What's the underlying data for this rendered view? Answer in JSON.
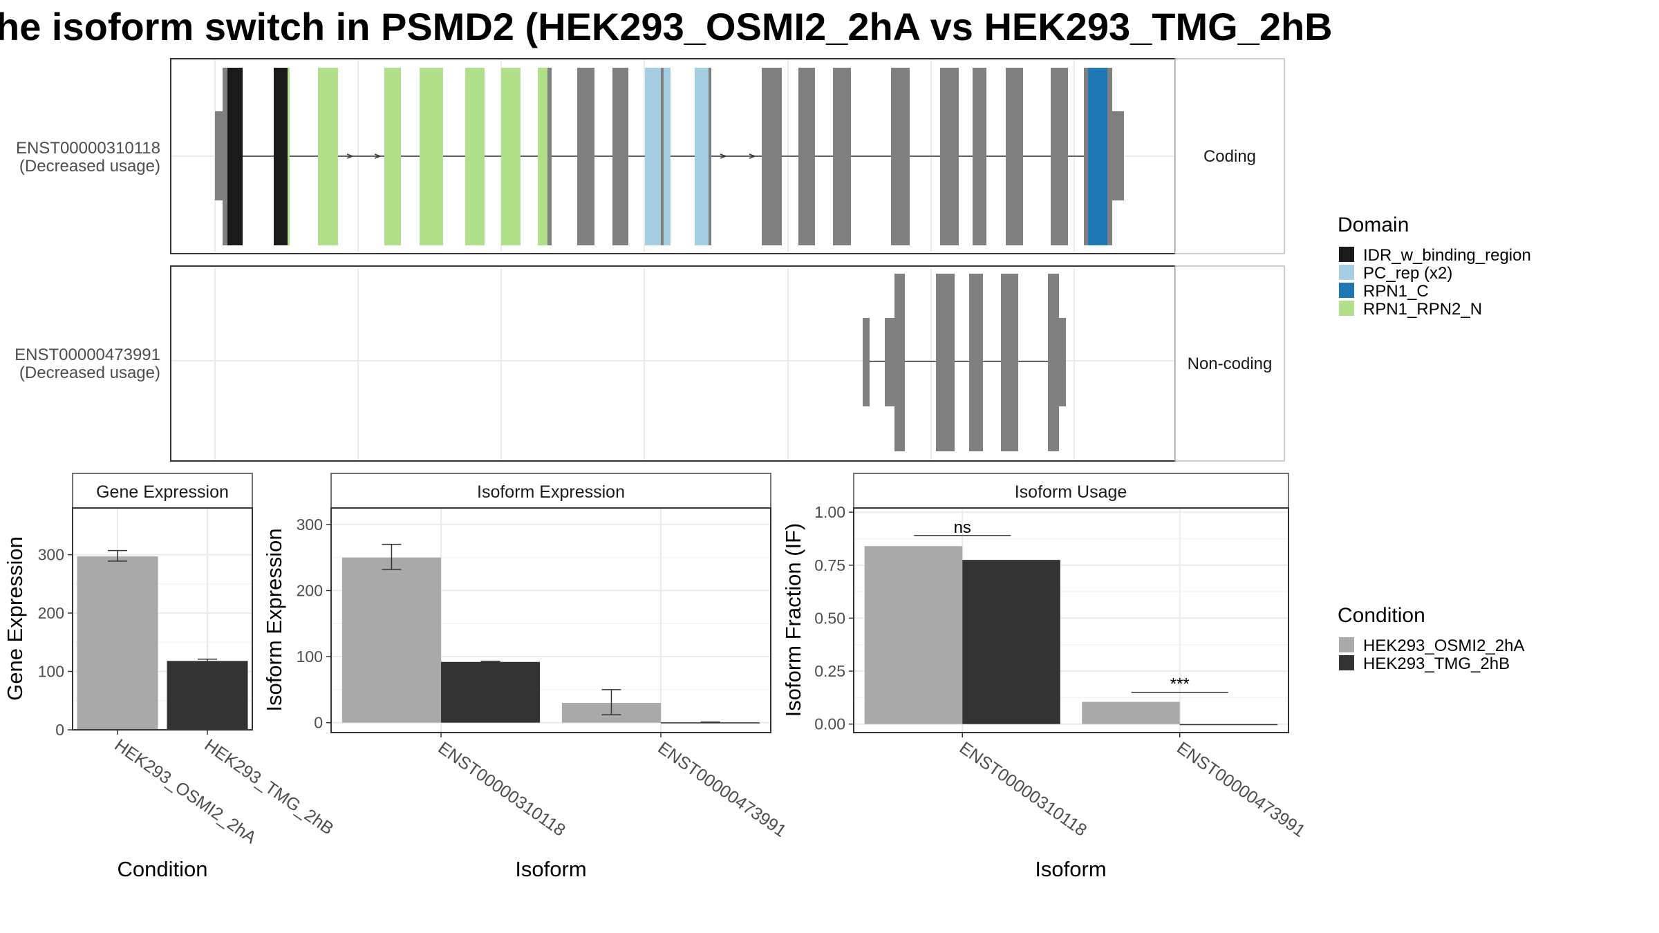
{
  "title": "he isoform switch in PSMD2 (HEK293_OSMI2_2hA vs HEK293_TMG_2hB",
  "colors": {
    "idr": "#1a1a1a",
    "pc_rep": "#a6cee3",
    "rpn1_c": "#1f78b4",
    "rpn1_rpn2_n": "#b2df8a",
    "exon_gray": "#808080",
    "cond_a": "#a9a9a9",
    "cond_b": "#333333"
  },
  "chart_data": [
    {
      "type": "gene-structure",
      "transcripts": [
        {
          "id": "ENST00000310118",
          "note": "(Decreased usage)",
          "strip": "Coding"
        },
        {
          "id": "ENST00000473991",
          "note": "(Decreased usage)",
          "strip": "Non-coding"
        }
      ],
      "legend": {
        "title": "Domain",
        "items": [
          {
            "label": "IDR_w_binding_region",
            "color": "#1a1a1a"
          },
          {
            "label": "PC_rep (x2)",
            "color": "#a6cee3"
          },
          {
            "label": "RPN1_C",
            "color": "#1f78b4"
          },
          {
            "label": "RPN1_RPN2_N",
            "color": "#b2df8a"
          }
        ]
      }
    },
    {
      "type": "bar",
      "panel": "Gene Expression",
      "categories": [
        "HEK293_OSMI2_2hA",
        "HEK293_TMG_2hB"
      ],
      "values": [
        297,
        118
      ],
      "errors": [
        [
          289,
          307
        ],
        [
          115,
          121
        ]
      ],
      "xlabel": "Condition",
      "ylabel": "Gene Expression",
      "ylim": [
        0,
        380
      ],
      "yticks": [
        0,
        100,
        200,
        300
      ],
      "grid": true
    },
    {
      "type": "bar",
      "panel": "Isoform Expression",
      "categories": [
        "ENST00000310118",
        "ENST00000473991"
      ],
      "series": [
        {
          "name": "HEK293_OSMI2_2hA",
          "values": [
            250,
            30
          ],
          "errors": [
            [
              232,
              270
            ],
            [
              12,
              50
            ]
          ]
        },
        {
          "name": "HEK293_TMG_2hB",
          "values": [
            92,
            0.5
          ],
          "errors": [
            [
              91,
              93
            ],
            [
              0,
              1
            ]
          ]
        }
      ],
      "xlabel": "Isoform",
      "ylabel": "Isoform Expression",
      "ylim": [
        -15,
        325
      ],
      "yticks": [
        0,
        100,
        200,
        300
      ],
      "grid": true
    },
    {
      "type": "bar",
      "panel": "Isoform Usage",
      "categories": [
        "ENST00000310118",
        "ENST00000473991"
      ],
      "series": [
        {
          "name": "HEK293_OSMI2_2hA",
          "values": [
            0.84,
            0.105
          ]
        },
        {
          "name": "HEK293_TMG_2hB",
          "values": [
            0.775,
            0.0
          ]
        }
      ],
      "annotations": [
        {
          "category": "ENST00000310118",
          "text": "ns",
          "y": 0.89
        },
        {
          "category": "ENST00000473991",
          "text": "***",
          "y": 0.15
        }
      ],
      "xlabel": "Isoform",
      "ylabel": "Isoform Fraction (IF)",
      "ylim": [
        -0.04,
        1.02
      ],
      "yticks": [
        0.0,
        0.25,
        0.5,
        0.75,
        1.0
      ],
      "ytick_labels": [
        "0.00",
        "0.25",
        "0.50",
        "0.75",
        "1.00"
      ],
      "grid": true
    }
  ],
  "condition_legend": {
    "title": "Condition",
    "items": [
      {
        "label": "HEK293_OSMI2_2hA",
        "color": "#a9a9a9"
      },
      {
        "label": "HEK293_TMG_2hB",
        "color": "#333333"
      }
    ]
  }
}
